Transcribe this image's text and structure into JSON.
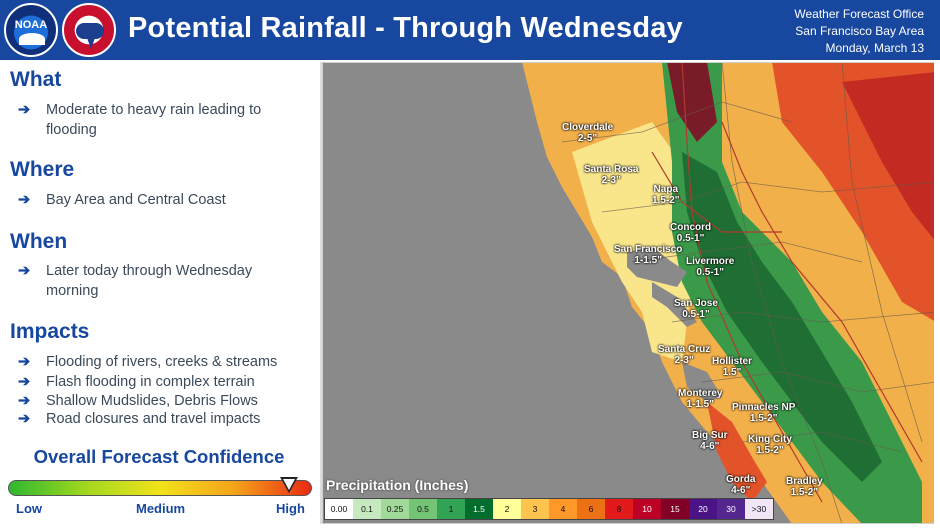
{
  "header": {
    "title": "Potential Rainfall - Through Wednesday",
    "noaa_logo_text": "NOAA",
    "office_line1": "Weather Forecast Office",
    "office_line2": "San Francisco Bay Area",
    "date": "Monday, March 13"
  },
  "sections": {
    "what": {
      "heading": "What",
      "items": [
        "Moderate to heavy rain leading to flooding"
      ]
    },
    "where": {
      "heading": "Where",
      "items": [
        "Bay Area and Central Coast"
      ]
    },
    "when": {
      "heading": "When",
      "items": [
        "Later today through Wednesday morning"
      ]
    },
    "impacts": {
      "heading": "Impacts",
      "items": [
        "Flooding of rivers, creeks & streams",
        "Flash flooding in complex terrain",
        "Shallow Mudslides, Debris Flows",
        "Road closures and travel impacts"
      ]
    },
    "arrow": "➔"
  },
  "confidence": {
    "heading": "Overall Forecast Confidence",
    "low": "Low",
    "medium": "Medium",
    "high": "High",
    "level": 0.92
  },
  "legend": {
    "title": "Precipitation (Inches)",
    "bins": [
      {
        "label": "0.00",
        "color": "#ffffff"
      },
      {
        "label": "0.1",
        "color": "#c7e9c0"
      },
      {
        "label": "0.25",
        "color": "#a1d99b"
      },
      {
        "label": "0.5",
        "color": "#74c476"
      },
      {
        "label": "1",
        "color": "#31a354"
      },
      {
        "label": "1.5",
        "color": "#006d2c"
      },
      {
        "label": "2",
        "color": "#ffff99"
      },
      {
        "label": "3",
        "color": "#fec44f"
      },
      {
        "label": "4",
        "color": "#fe9929"
      },
      {
        "label": "6",
        "color": "#ec7014"
      },
      {
        "label": "8",
        "color": "#e31a1c"
      },
      {
        "label": "10",
        "color": "#bd0026"
      },
      {
        "label": "15",
        "color": "#800026"
      },
      {
        "label": "20",
        "color": "#4a1486"
      },
      {
        "label": "30",
        "color": "#54278f"
      },
      {
        "label": ">30",
        "color": "#f0e6f6"
      }
    ]
  },
  "cities": [
    {
      "name": "Cloverdale",
      "amount": "2-5\""
    },
    {
      "name": "Santa Rosa",
      "amount": "2-3\""
    },
    {
      "name": "Napa",
      "amount": "1.5-2\""
    },
    {
      "name": "Concord",
      "amount": "0.5-1\""
    },
    {
      "name": "San Francisco",
      "amount": "1-1.5\""
    },
    {
      "name": "Livermore",
      "amount": "0.5-1\""
    },
    {
      "name": "San Jose",
      "amount": "0.5-1\""
    },
    {
      "name": "Santa Cruz",
      "amount": "2-3\""
    },
    {
      "name": "Hollister",
      "amount": "1.5\""
    },
    {
      "name": "Monterey",
      "amount": "1-1.5\""
    },
    {
      "name": "Pinnacles NP",
      "amount": "1.5-2\""
    },
    {
      "name": "Big Sur",
      "amount": "4-6\""
    },
    {
      "name": "King City",
      "amount": "1.5-2\""
    },
    {
      "name": "Gorda",
      "amount": "4-6\""
    },
    {
      "name": "Bradley",
      "amount": "1.5-2\""
    }
  ]
}
